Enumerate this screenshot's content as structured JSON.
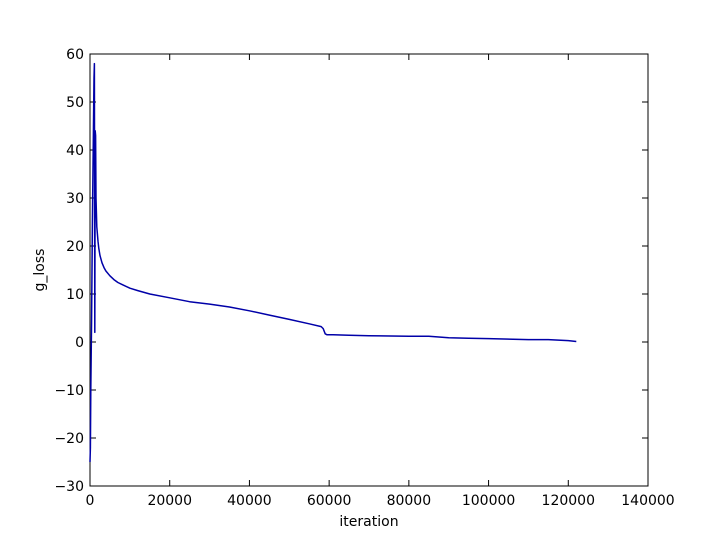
{
  "chart_data": {
    "type": "line",
    "title": "",
    "xlabel": "iteration",
    "ylabel": "g_loss",
    "xlim": [
      0,
      140000
    ],
    "ylim": [
      -30,
      60
    ],
    "xticks": [
      0,
      20000,
      40000,
      60000,
      80000,
      100000,
      120000,
      140000
    ],
    "xtick_labels": [
      "0",
      "20000",
      "40000",
      "60000",
      "80000",
      "100000",
      "120000",
      "140000"
    ],
    "yticks": [
      -30,
      -20,
      -10,
      0,
      10,
      20,
      30,
      40,
      50,
      60
    ],
    "ytick_labels": [
      "−30",
      "−20",
      "−10",
      "0",
      "10",
      "20",
      "30",
      "40",
      "50",
      "60"
    ],
    "grid": false,
    "line_color": "#0000a8",
    "series": [
      {
        "x": [
          0,
          100,
          200,
          400,
          600,
          800,
          1000,
          1100,
          1200,
          1300,
          1400,
          1500,
          1600,
          1700,
          1800,
          2000,
          2200,
          2500,
          3000,
          3500,
          4000,
          5000,
          6000,
          7000,
          8000,
          10000,
          12000,
          15000,
          20000,
          25000,
          30000,
          35000,
          40000,
          45000,
          50000,
          55000,
          58000,
          58500,
          59000,
          59500,
          60000,
          61000,
          65000,
          70000,
          80000,
          85000,
          90000,
          95000,
          100000,
          110000,
          115000,
          120000,
          122000
        ],
        "y": [
          -25,
          -22,
          -10,
          5,
          25,
          40,
          55,
          58,
          2,
          44,
          43,
          30,
          27,
          24,
          23,
          21,
          19.5,
          18,
          16.5,
          15.5,
          14.8,
          13.8,
          13,
          12.4,
          12,
          11.2,
          10.7,
          10,
          9.2,
          8.4,
          7.9,
          7.3,
          6.5,
          5.6,
          4.7,
          3.8,
          3.2,
          2.8,
          1.7,
          1.5,
          1.5,
          1.5,
          1.4,
          1.3,
          1.2,
          1.2,
          0.9,
          0.8,
          0.7,
          0.5,
          0.5,
          0.3,
          0.1
        ]
      }
    ]
  }
}
